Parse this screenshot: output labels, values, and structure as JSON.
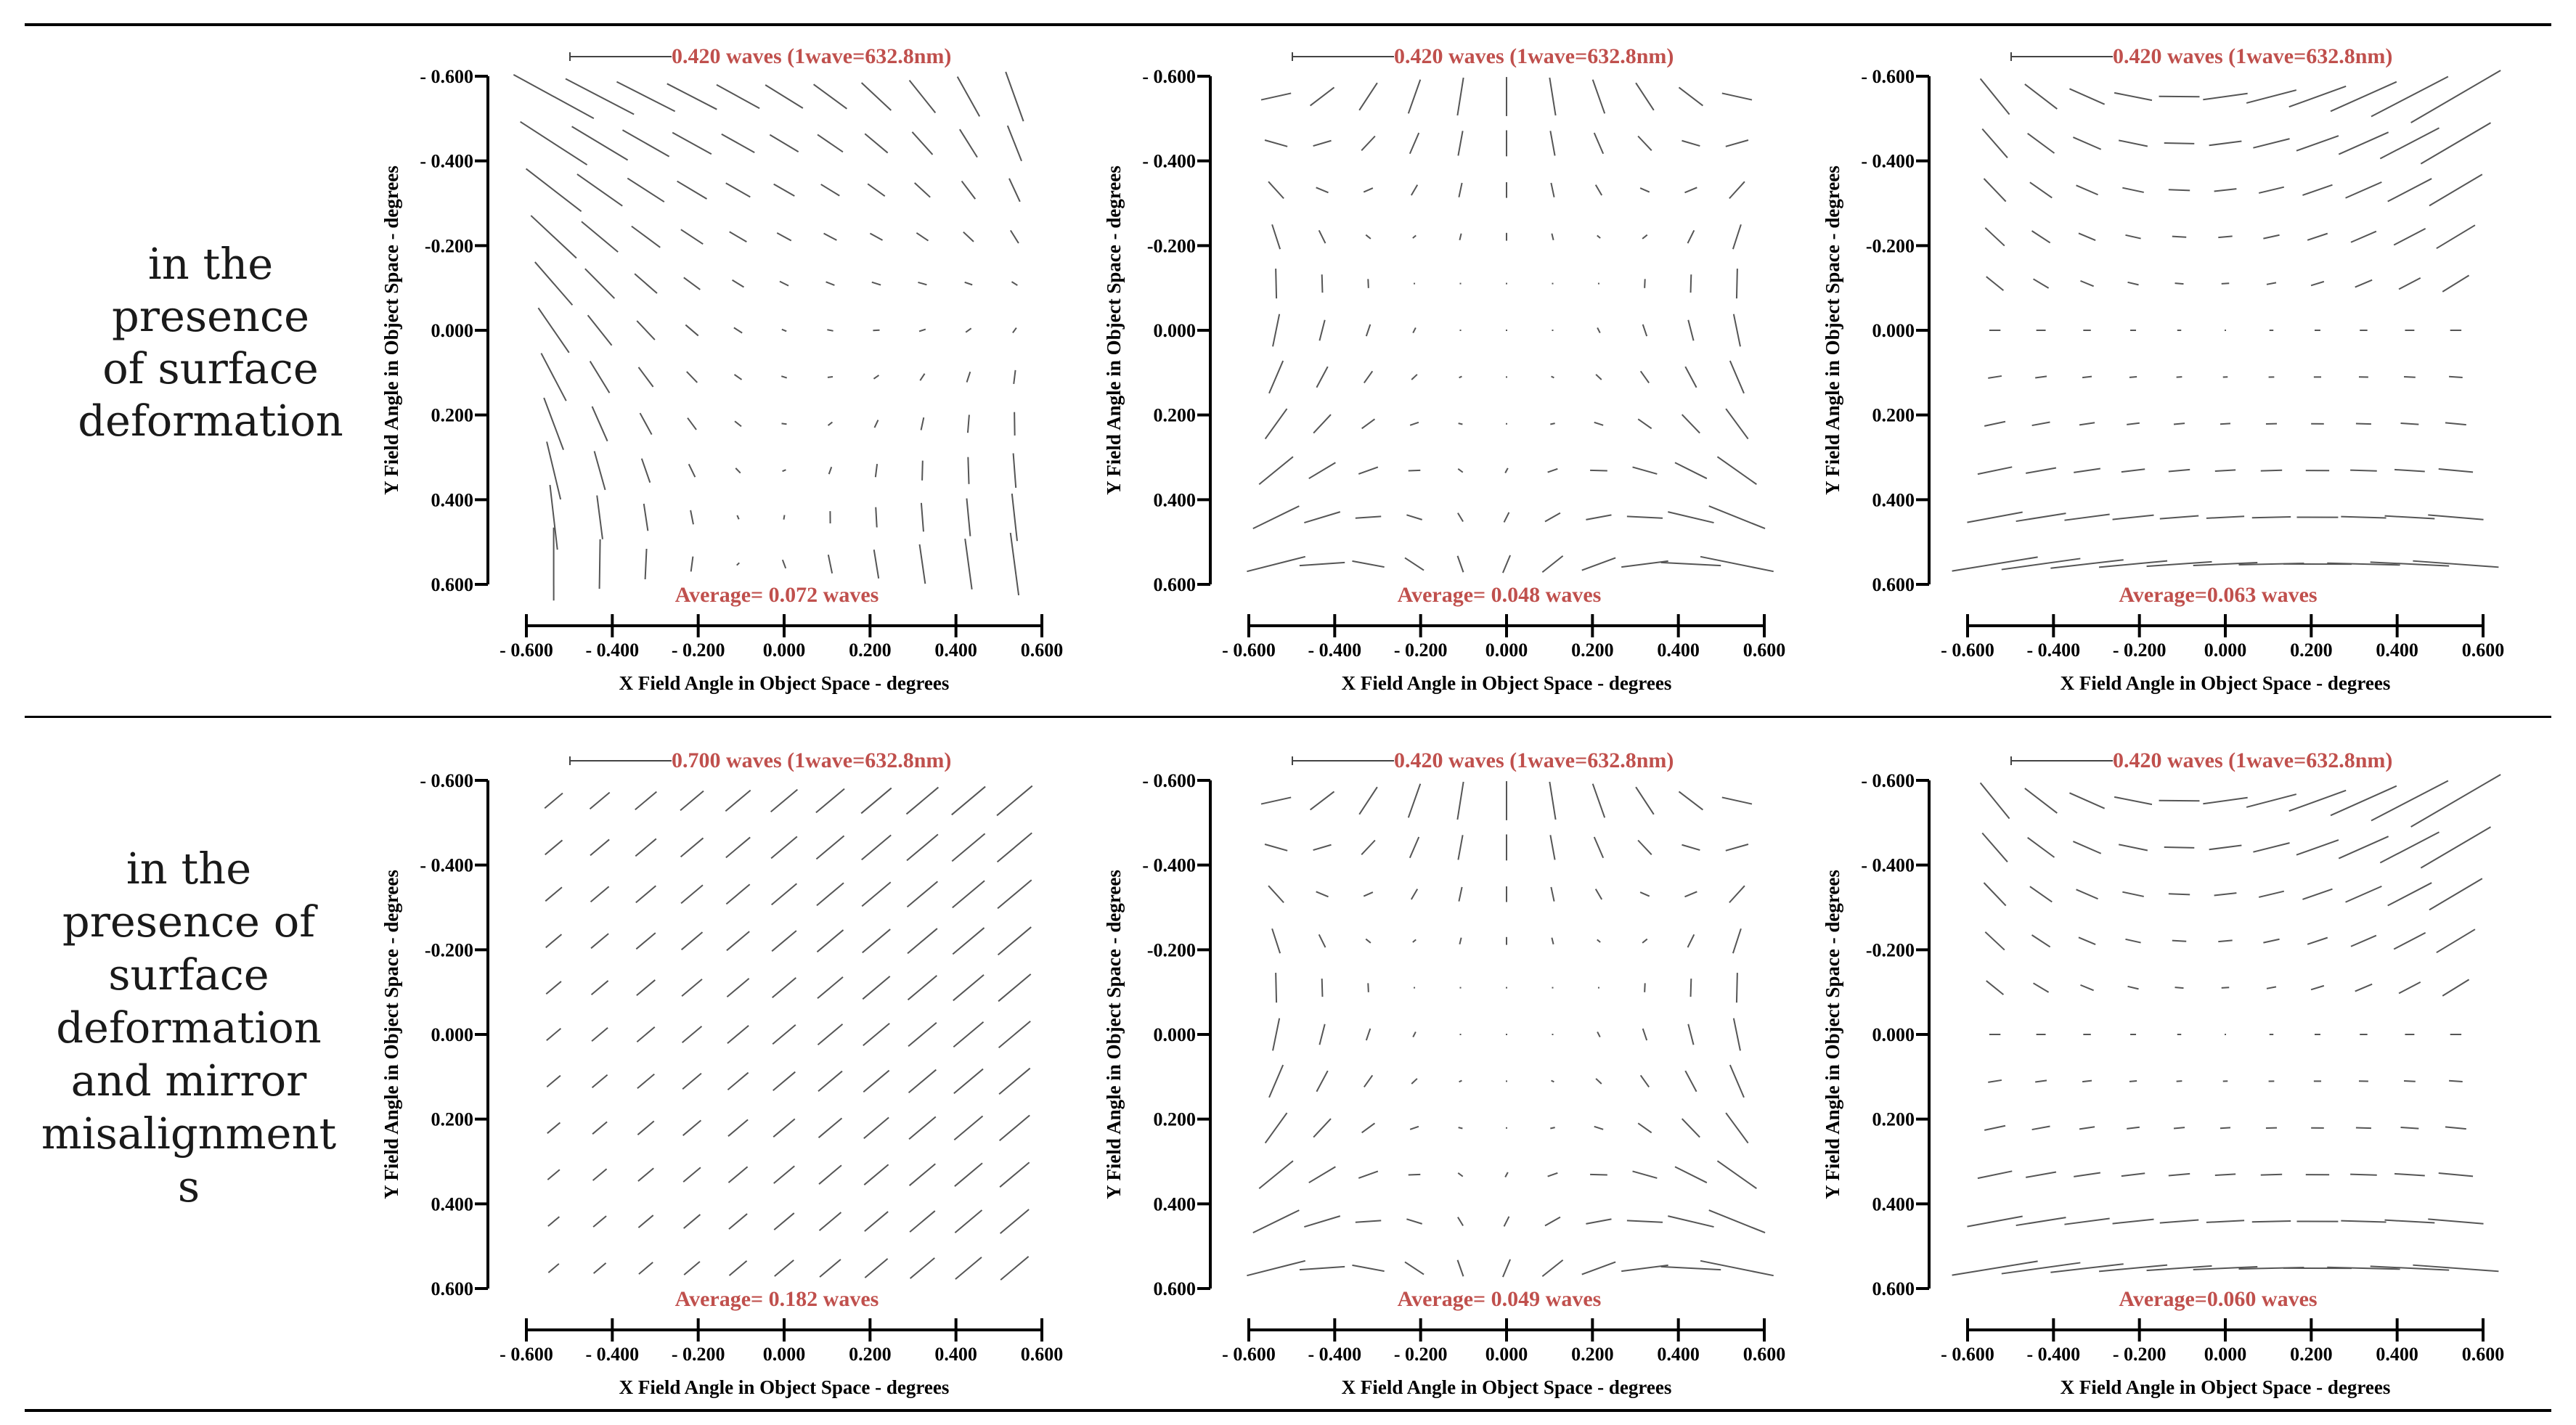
{
  "colors": {
    "annotation": "#c0504d",
    "axis": "#000000",
    "vector": "#555555"
  },
  "rows": [
    {
      "label_lines": [
        "in the presence",
        "of surface",
        "deformation"
      ]
    },
    {
      "label_lines": [
        "in the",
        "presence of",
        "surface",
        "deformation",
        "and mirror",
        "misalignment",
        "s"
      ]
    }
  ],
  "axes": {
    "xlabel": "X Field Angle in Object Space - degrees",
    "ylabel": "Y Field Angle in Object Space - degrees",
    "ticks": [
      -0.6,
      -0.4,
      -0.2,
      0.0,
      0.2,
      0.4,
      0.6
    ],
    "x_tick_labels": [
      "- 0.600",
      "- 0.400",
      "- 0.200",
      "0.000",
      "0.200",
      "0.400",
      "0.600"
    ],
    "y_tick_labels": [
      "0.600",
      "0.400",
      "0.200",
      "0.000",
      "-0.200",
      "- 0.400",
      "- 0.600"
    ]
  },
  "chart_data": [
    {
      "type": "vector-field",
      "scale_label": "0.420 waves (1wave=632.8nm)",
      "average_label": "Average= 0.072 waves",
      "xlim": [
        -0.6,
        0.6
      ],
      "ylim": [
        -0.6,
        0.6
      ],
      "grid_n": 11,
      "pattern": "A"
    },
    {
      "type": "vector-field",
      "scale_label": "0.420 waves (1wave=632.8nm)",
      "average_label": "Average= 0.048 waves",
      "xlim": [
        -0.6,
        0.6
      ],
      "ylim": [
        -0.6,
        0.6
      ],
      "grid_n": 11,
      "pattern": "B"
    },
    {
      "type": "vector-field",
      "scale_label": "0.420 waves (1wave=632.8nm)",
      "average_label": "Average=0.063 waves",
      "xlim": [
        -0.6,
        0.6
      ],
      "ylim": [
        -0.6,
        0.6
      ],
      "grid_n": 11,
      "pattern": "C"
    },
    {
      "type": "vector-field",
      "scale_label": "0.700 waves (1wave=632.8nm)",
      "average_label": "Average= 0.182 waves",
      "xlim": [
        -0.6,
        0.6
      ],
      "ylim": [
        -0.6,
        0.6
      ],
      "grid_n": 11,
      "pattern": "D"
    },
    {
      "type": "vector-field",
      "scale_label": "0.420 waves (1wave=632.8nm)",
      "average_label": "Average= 0.049 waves",
      "xlim": [
        -0.6,
        0.6
      ],
      "ylim": [
        -0.6,
        0.6
      ],
      "grid_n": 11,
      "pattern": "B"
    },
    {
      "type": "vector-field",
      "scale_label": "0.420 waves (1wave=632.8nm)",
      "average_label": "Average=0.060 waves",
      "xlim": [
        -0.6,
        0.6
      ],
      "ylim": [
        -0.6,
        0.6
      ],
      "grid_n": 11,
      "pattern": "C"
    }
  ]
}
